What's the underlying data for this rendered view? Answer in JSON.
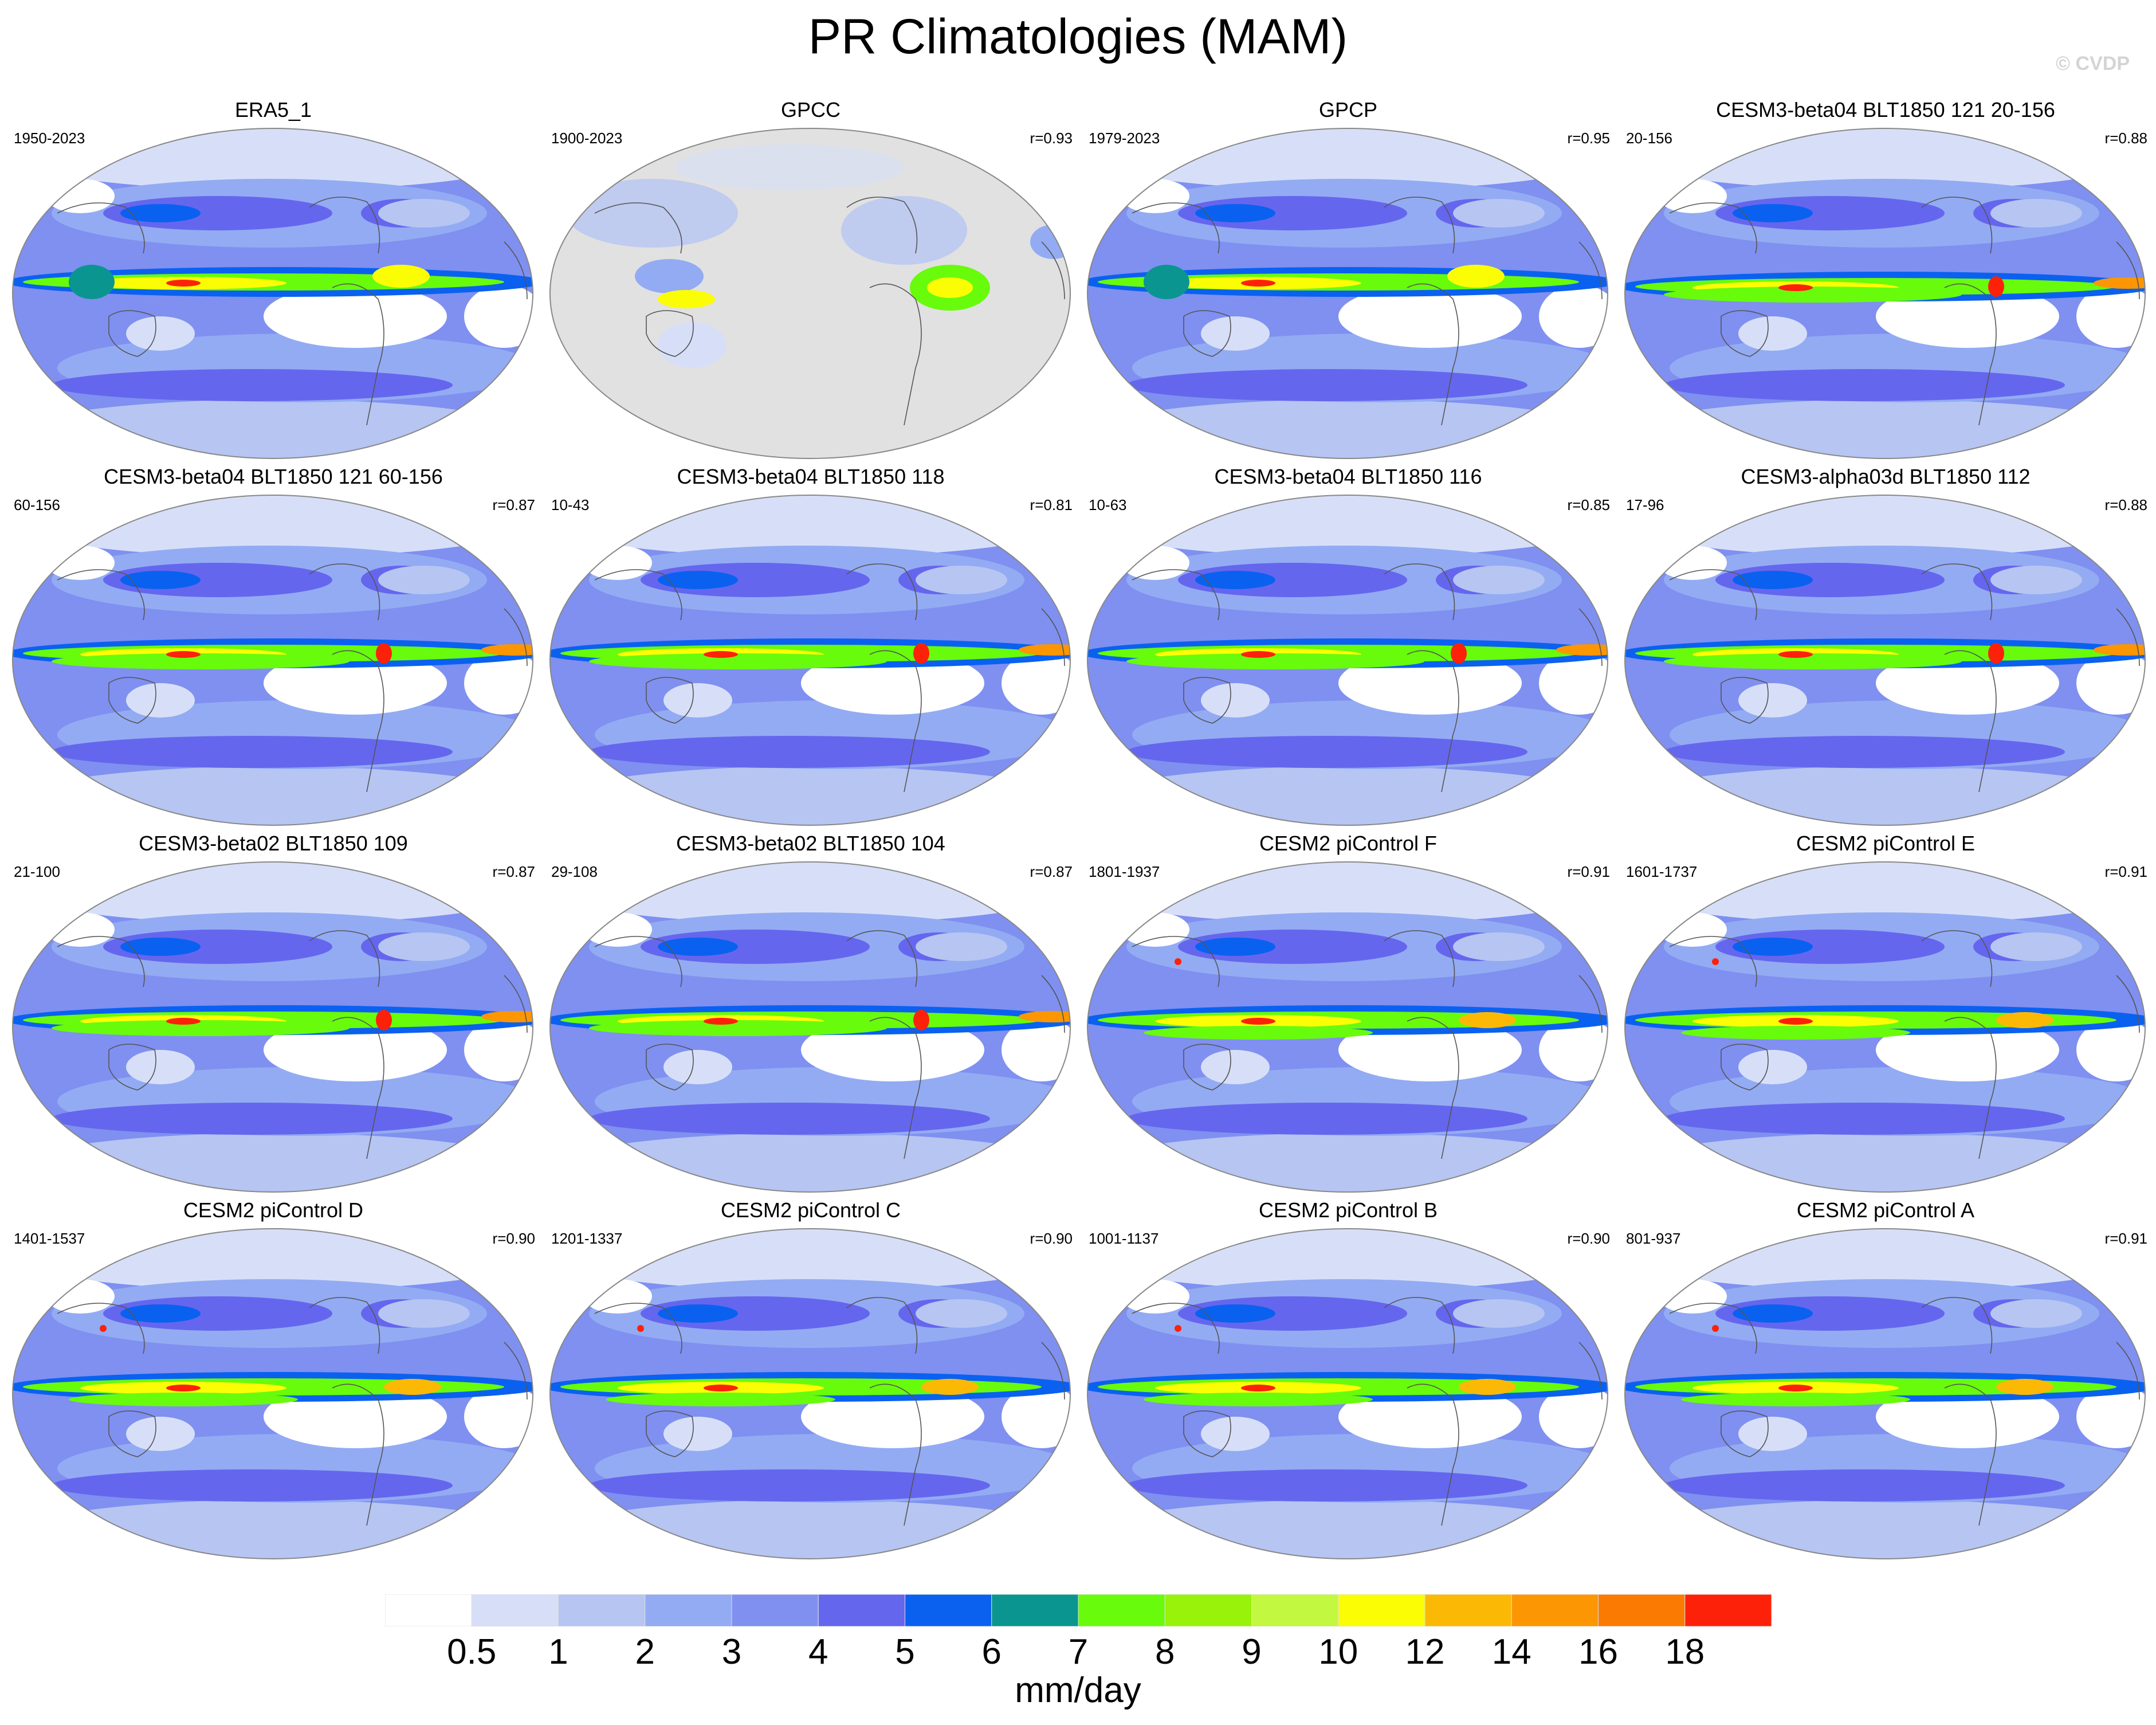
{
  "title": "PR Climatologies (MAM)",
  "watermark": "© CVDP",
  "panels": [
    {
      "title": "ERA5_1",
      "period": "1950-2023",
      "r": "",
      "style": "era"
    },
    {
      "title": "GPCC",
      "period": "1900-2023",
      "r": "r=0.93",
      "style": "land"
    },
    {
      "title": "GPCP",
      "period": "1979-2023",
      "r": "r=0.95",
      "style": "obs"
    },
    {
      "title": "CESM3-beta04 BLT1850 121 20-156",
      "period": "20-156",
      "r": "r=0.88",
      "style": "model"
    },
    {
      "title": "CESM3-beta04 BLT1850 121 60-156",
      "period": "60-156",
      "r": "r=0.87",
      "style": "model"
    },
    {
      "title": "CESM3-beta04 BLT1850 118",
      "period": "10-43",
      "r": "r=0.81",
      "style": "model"
    },
    {
      "title": "CESM3-beta04 BLT1850 116",
      "period": "10-63",
      "r": "r=0.85",
      "style": "model"
    },
    {
      "title": "CESM3-alpha03d BLT1850 112",
      "period": "17-96",
      "r": "r=0.88",
      "style": "model"
    },
    {
      "title": "CESM3-beta02 BLT1850 109",
      "period": "21-100",
      "r": "r=0.87",
      "style": "model"
    },
    {
      "title": "CESM3-beta02 BLT1850 104",
      "period": "29-108",
      "r": "r=0.87",
      "style": "model"
    },
    {
      "title": "CESM2 piControl F",
      "period": "1801-1937",
      "r": "r=0.91",
      "style": "cesm2"
    },
    {
      "title": "CESM2 piControl E",
      "period": "1601-1737",
      "r": "r=0.91",
      "style": "cesm2"
    },
    {
      "title": "CESM2 piControl D",
      "period": "1401-1537",
      "r": "r=0.90",
      "style": "cesm2"
    },
    {
      "title": "CESM2 piControl C",
      "period": "1201-1337",
      "r": "r=0.90",
      "style": "cesm2"
    },
    {
      "title": "CESM2 piControl B",
      "period": "1001-1137",
      "r": "r=0.90",
      "style": "cesm2"
    },
    {
      "title": "CESM2 piControl A",
      "period": "801-937",
      "r": "r=0.91",
      "style": "cesm2"
    }
  ],
  "colorbar": {
    "colors": [
      "#ffffff",
      "#d7dff8",
      "#b6c5f2",
      "#93abf3",
      "#7f90f0",
      "#6566ee",
      "#0a61f0",
      "#0b9590",
      "#68fb0c",
      "#98f20a",
      "#c3f841",
      "#fbfd05",
      "#fbb906",
      "#fc9603",
      "#fb7b02",
      "#fe2109"
    ],
    "labels": [
      "0.5",
      "1",
      "2",
      "3",
      "4",
      "5",
      "6",
      "7",
      "8",
      "9",
      "10",
      "12",
      "14",
      "16",
      "18"
    ],
    "units": "mm/day"
  }
}
